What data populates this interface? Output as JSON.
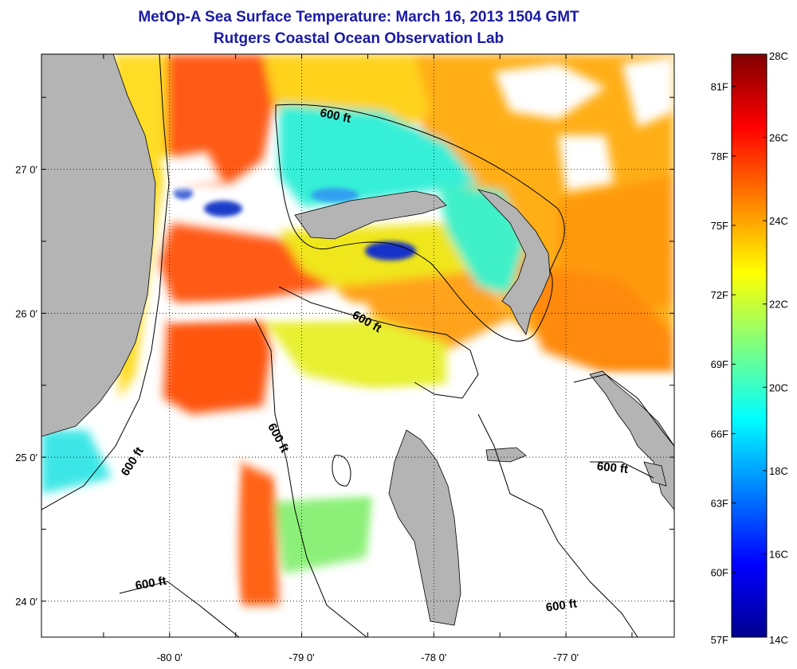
{
  "title": {
    "line1": "MetOp-A Sea Surface Temperature:  March 16, 2013 1504 GMT",
    "line2": "Rutgers Coastal Ocean Observation Lab"
  },
  "map": {
    "longitude_range": [
      -80.97,
      -76.18
    ],
    "latitude_range": [
      23.75,
      27.8
    ],
    "longitude_ticks": [
      {
        "value": -80,
        "label": "-80 0'"
      },
      {
        "value": -79,
        "label": "-79 0'"
      },
      {
        "value": -78,
        "label": "-78 0'"
      },
      {
        "value": -77,
        "label": "-77 0'"
      }
    ],
    "latitude_ticks": [
      {
        "value": 27,
        "label": "27 0'"
      },
      {
        "value": 26,
        "label": "26 0'"
      },
      {
        "value": 25,
        "label": "25 0'"
      },
      {
        "value": 24,
        "label": "24 0'"
      }
    ],
    "grid": "dotted",
    "contour_labels": [
      "600 ft",
      "600 ft",
      "600 ft",
      "600 ft",
      "600 ft",
      "600 ft"
    ],
    "colors": {
      "land": "#b4b4b4",
      "no_data": "#ffffff",
      "contour": "#000000"
    }
  },
  "colorbar": {
    "colormap": "jet",
    "range_celsius": [
      14,
      28
    ],
    "celsius_labels": [
      "28C",
      "26C",
      "24C",
      "22C",
      "20C",
      "18C",
      "16C",
      "14C"
    ],
    "fahrenheit_labels": [
      "81F",
      "78F",
      "75F",
      "72F",
      "69F",
      "66F",
      "63F",
      "60F",
      "57F"
    ]
  }
}
